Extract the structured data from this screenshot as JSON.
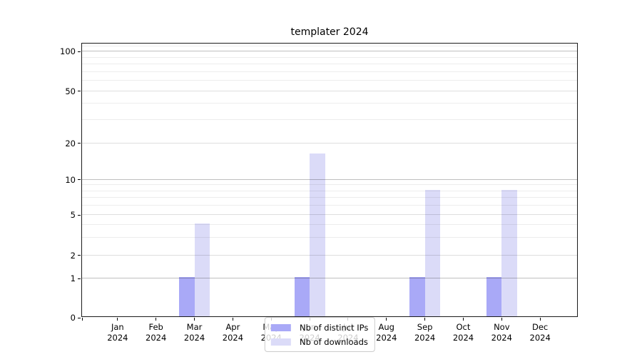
{
  "chart_data": {
    "type": "bar",
    "title": "templater 2024",
    "categories": [
      "Jan",
      "Feb",
      "Mar",
      "Apr",
      "May",
      "Jun",
      "Jul",
      "Aug",
      "Sep",
      "Oct",
      "Nov",
      "Dec"
    ],
    "year": "2024",
    "series": [
      {
        "name": "Nb of distinct IPs",
        "color": "#a9a9f7",
        "values": [
          0,
          0,
          1,
          0,
          0,
          1,
          0,
          0,
          1,
          0,
          1,
          0
        ]
      },
      {
        "name": "Nb of downloads",
        "color": "#dbdbf8",
        "values": [
          0,
          0,
          4,
          0,
          0,
          16,
          0,
          0,
          8,
          0,
          8,
          0
        ]
      }
    ],
    "y_axis": {
      "scale": "asinh (linear below 1, log above)",
      "major_ticks": [
        0,
        1,
        2,
        5,
        10,
        20,
        50,
        100
      ],
      "decade_ticks": [
        1,
        10,
        100
      ],
      "minor_gridlines": [
        3,
        4,
        6,
        7,
        8,
        9,
        30,
        40,
        60,
        70,
        80,
        90,
        110
      ],
      "range": [
        0,
        115
      ]
    },
    "x_axis": {
      "tick_years_shown": true
    },
    "legend": {
      "position": "lower center"
    },
    "grid": true,
    "colors": {
      "bar_distinct_ips": "#a9a9f7",
      "bar_downloads": "#dbdbf8",
      "text": "#000000"
    }
  }
}
